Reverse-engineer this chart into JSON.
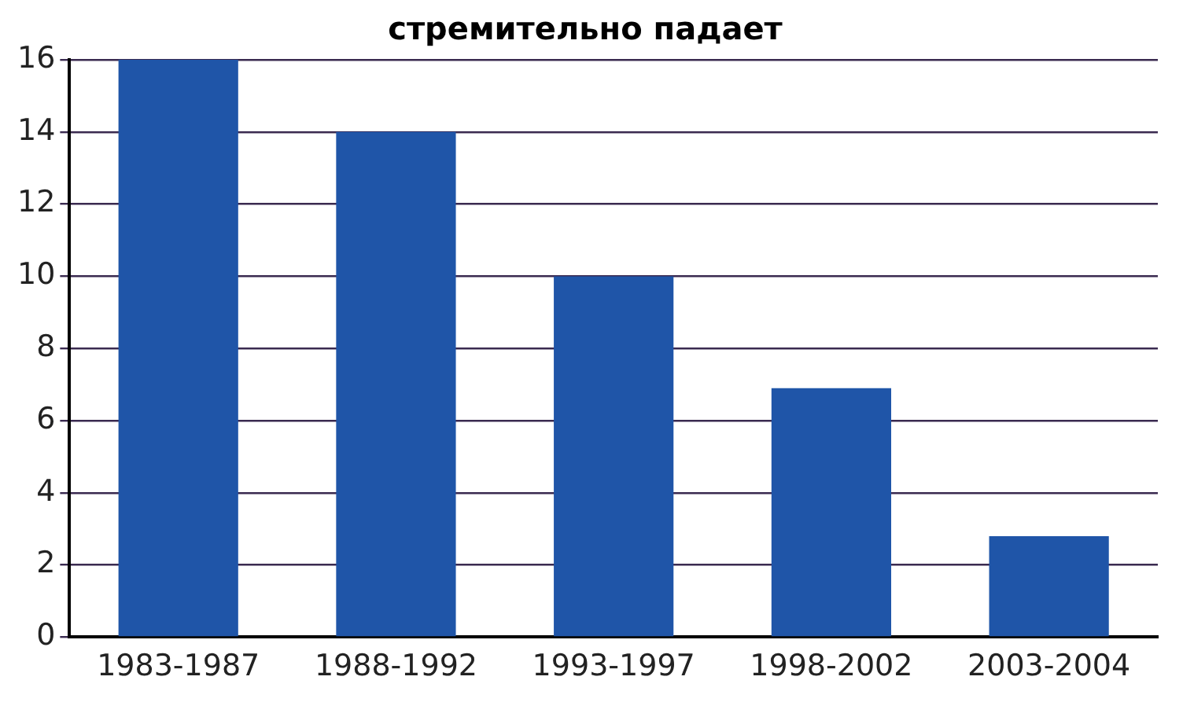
{
  "chart_data": {
    "type": "bar",
    "title": "стремительно падает",
    "categories": [
      "1983-1987",
      "1988-1992",
      "1993-1997",
      "1998-2002",
      "2003-2004"
    ],
    "values": [
      16,
      14,
      10,
      6.9,
      2.8
    ],
    "color": "#1f55a8",
    "ylim": [
      0,
      16
    ],
    "yticks": [
      0,
      2,
      4,
      6,
      8,
      10,
      12,
      14,
      16
    ],
    "grid": "y",
    "legend": false
  }
}
